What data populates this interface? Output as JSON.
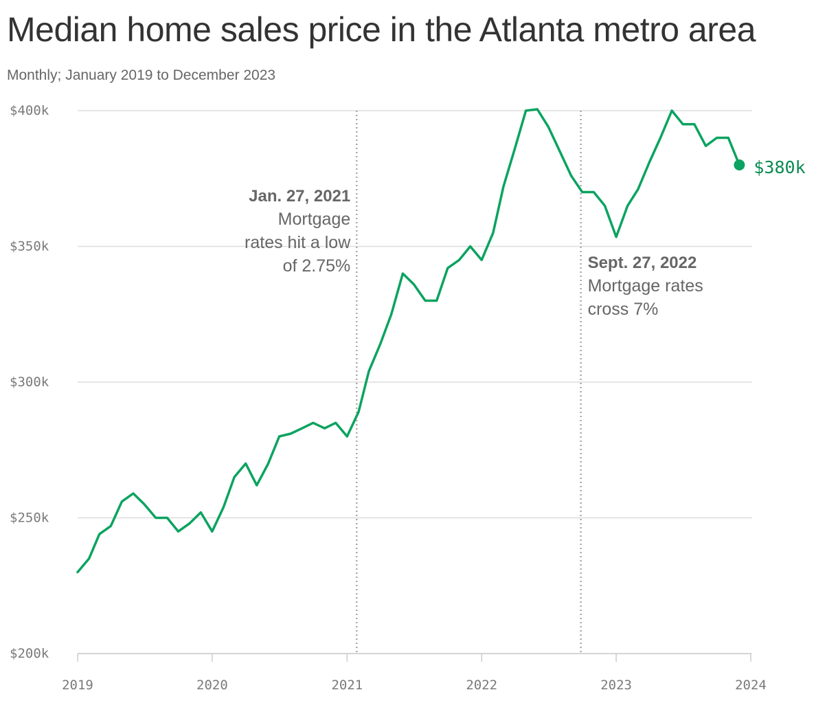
{
  "title": "Median home sales price in the Atlanta metro area",
  "subtitle": "Monthly; January 2019 to December 2023",
  "colors": {
    "line": "#0ba360",
    "end_label": "#0a8a4f",
    "grid": "#dddddd",
    "tick_text": "#7a7a7a",
    "annotation_text": "#666666",
    "annotation_line": "#aaaaaa"
  },
  "chart_data": {
    "type": "line",
    "title": "Median home sales price in the Atlanta metro area",
    "subtitle": "Monthly; January 2019 to December 2023",
    "xlabel": "",
    "ylabel": "",
    "x_start": "2019-01",
    "x_end": "2023-12",
    "xlim": [
      "2019-01-01",
      "2024-01-01"
    ],
    "ylim": [
      200000,
      400000
    ],
    "grid": true,
    "x_ticks": [
      "2019",
      "2020",
      "2021",
      "2022",
      "2023",
      "2024"
    ],
    "y_ticks": [
      {
        "value": 200000,
        "label": "$200k"
      },
      {
        "value": 250000,
        "label": "$250k"
      },
      {
        "value": 300000,
        "label": "$300k"
      },
      {
        "value": 350000,
        "label": "$350k"
      },
      {
        "value": 400000,
        "label": "$400k"
      }
    ],
    "series": [
      {
        "values": [
          230000,
          235000,
          244000,
          247000,
          256000,
          259000,
          255000,
          250000,
          250000,
          245000,
          248000,
          252000,
          245000,
          254000,
          265000,
          270000,
          262000,
          270000,
          280000,
          281000,
          283000,
          285000,
          283000,
          285000,
          280000,
          289000,
          304000,
          314000,
          325000,
          340000,
          336000,
          330000,
          330000,
          342000,
          345000,
          350000,
          345000,
          355000,
          372000,
          386000,
          400000,
          400500,
          394000,
          385000,
          376000,
          370000,
          370000,
          365000,
          353500,
          365000,
          371000,
          381000,
          390000,
          400000,
          395000,
          395000,
          387000,
          390000,
          390000,
          380000
        ]
      }
    ],
    "end_label": "$380k",
    "annotations": [
      {
        "date": "2021-01-27",
        "heading": "Jan. 27, 2021",
        "lines": [
          "Mortgage",
          "rates hit a low",
          "of 2.75%"
        ],
        "align": "left"
      },
      {
        "date": "2022-09-27",
        "heading": "Sept. 27, 2022",
        "lines": [
          "Mortgage rates",
          "cross 7%"
        ],
        "align": "right"
      }
    ]
  }
}
